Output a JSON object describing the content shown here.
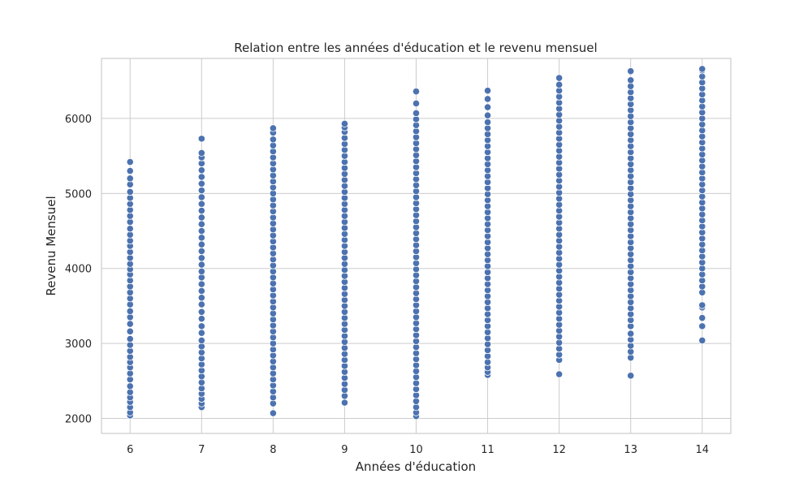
{
  "chart_data": {
    "type": "scatter",
    "title": "Relation entre les années d'éducation et le revenu mensuel",
    "xlabel": "Années d'éducation",
    "ylabel": "Revenu Mensuel",
    "xlim": [
      5.6,
      14.4
    ],
    "ylim": [
      1800,
      6800
    ],
    "xticks": [
      6,
      7,
      8,
      9,
      10,
      11,
      12,
      13,
      14
    ],
    "yticks": [
      2000,
      3000,
      4000,
      5000,
      6000
    ],
    "grid": true,
    "colors": {
      "point": "#4C72B0",
      "grid": "#cccccc"
    },
    "series": [
      {
        "x": 6,
        "values": [
          2040,
          2080,
          2150,
          2220,
          2280,
          2350,
          2430,
          2520,
          2600,
          2680,
          2750,
          2820,
          2900,
          2980,
          3060,
          3160,
          3260,
          3350,
          3430,
          3520,
          3600,
          3680,
          3760,
          3840,
          3920,
          3990,
          4060,
          4140,
          4220,
          4300,
          4370,
          4450,
          4530,
          4620,
          4700,
          4780,
          4860,
          4940,
          5020,
          5120,
          5200,
          5300,
          5420
        ]
      },
      {
        "x": 7,
        "values": [
          2150,
          2200,
          2260,
          2330,
          2400,
          2480,
          2560,
          2640,
          2720,
          2800,
          2880,
          2960,
          3040,
          3140,
          3230,
          3330,
          3420,
          3520,
          3610,
          3700,
          3790,
          3880,
          3960,
          4050,
          4140,
          4230,
          4320,
          4410,
          4500,
          4590,
          4680,
          4770,
          4860,
          4950,
          5040,
          5130,
          5220,
          5310,
          5400,
          5480,
          5540,
          5730
        ]
      },
      {
        "x": 8,
        "values": [
          2070,
          2200,
          2280,
          2360,
          2440,
          2520,
          2600,
          2680,
          2760,
          2840,
          2920,
          3000,
          3080,
          3160,
          3240,
          3320,
          3400,
          3480,
          3560,
          3640,
          3720,
          3800,
          3880,
          3960,
          4040,
          4120,
          4200,
          4280,
          4360,
          4440,
          4520,
          4600,
          4680,
          4760,
          4840,
          4920,
          5000,
          5080,
          5160,
          5240,
          5320,
          5400,
          5480,
          5560,
          5640,
          5720,
          5810,
          5870
        ]
      },
      {
        "x": 9,
        "values": [
          2210,
          2300,
          2380,
          2460,
          2540,
          2620,
          2700,
          2780,
          2860,
          2940,
          3020,
          3100,
          3180,
          3260,
          3340,
          3420,
          3500,
          3580,
          3660,
          3740,
          3820,
          3900,
          3980,
          4060,
          4140,
          4220,
          4300,
          4380,
          4460,
          4540,
          4620,
          4700,
          4780,
          4860,
          4940,
          5020,
          5100,
          5180,
          5260,
          5340,
          5420,
          5500,
          5580,
          5660,
          5740,
          5820,
          5880,
          5930
        ]
      },
      {
        "x": 10,
        "values": [
          2030,
          2080,
          2150,
          2230,
          2310,
          2390,
          2470,
          2550,
          2630,
          2710,
          2790,
          2870,
          2950,
          3030,
          3110,
          3190,
          3270,
          3350,
          3430,
          3510,
          3590,
          3670,
          3750,
          3830,
          3910,
          3990,
          4070,
          4150,
          4230,
          4310,
          4390,
          4470,
          4550,
          4630,
          4710,
          4790,
          4870,
          4950,
          5030,
          5110,
          5190,
          5270,
          5350,
          5430,
          5510,
          5590,
          5670,
          5750,
          5830,
          5910,
          5990,
          6070,
          6200,
          6360
        ]
      },
      {
        "x": 11,
        "values": [
          2580,
          2620,
          2680,
          2750,
          2830,
          2910,
          2990,
          3070,
          3150,
          3230,
          3310,
          3390,
          3470,
          3550,
          3630,
          3710,
          3790,
          3870,
          3950,
          4030,
          4110,
          4190,
          4270,
          4350,
          4430,
          4510,
          4590,
          4670,
          4750,
          4830,
          4910,
          4990,
          5070,
          5150,
          5230,
          5310,
          5390,
          5470,
          5550,
          5630,
          5710,
          5790,
          5870,
          5950,
          6040,
          6150,
          6260,
          6370
        ]
      },
      {
        "x": 12,
        "values": [
          2590,
          2780,
          2850,
          2930,
          3010,
          3090,
          3170,
          3250,
          3330,
          3410,
          3490,
          3570,
          3650,
          3730,
          3810,
          3890,
          3970,
          4050,
          4130,
          4210,
          4290,
          4370,
          4450,
          4530,
          4610,
          4690,
          4770,
          4850,
          4930,
          5010,
          5090,
          5170,
          5250,
          5330,
          5410,
          5490,
          5570,
          5650,
          5730,
          5810,
          5890,
          5970,
          6050,
          6130,
          6210,
          6290,
          6370,
          6450,
          6540
        ]
      },
      {
        "x": 13,
        "values": [
          2570,
          2810,
          2890,
          2970,
          3050,
          3130,
          3230,
          3310,
          3390,
          3470,
          3550,
          3630,
          3710,
          3790,
          3870,
          3950,
          4030,
          4110,
          4190,
          4270,
          4350,
          4430,
          4510,
          4590,
          4670,
          4750,
          4830,
          4910,
          4990,
          5070,
          5150,
          5230,
          5310,
          5390,
          5470,
          5550,
          5630,
          5710,
          5790,
          5870,
          5950,
          6030,
          6110,
          6190,
          6270,
          6350,
          6430,
          6510,
          6630
        ]
      },
      {
        "x": 14,
        "values": [
          3040,
          3230,
          3340,
          3480,
          3510,
          3680,
          3760,
          3840,
          3920,
          4000,
          4080,
          4160,
          4240,
          4320,
          4400,
          4480,
          4560,
          4640,
          4720,
          4800,
          4880,
          4960,
          5040,
          5120,
          5200,
          5280,
          5360,
          5440,
          5520,
          5600,
          5680,
          5760,
          5840,
          5920,
          6000,
          6080,
          6160,
          6240,
          6320,
          6400,
          6480,
          6560,
          6640,
          6660
        ]
      }
    ]
  }
}
